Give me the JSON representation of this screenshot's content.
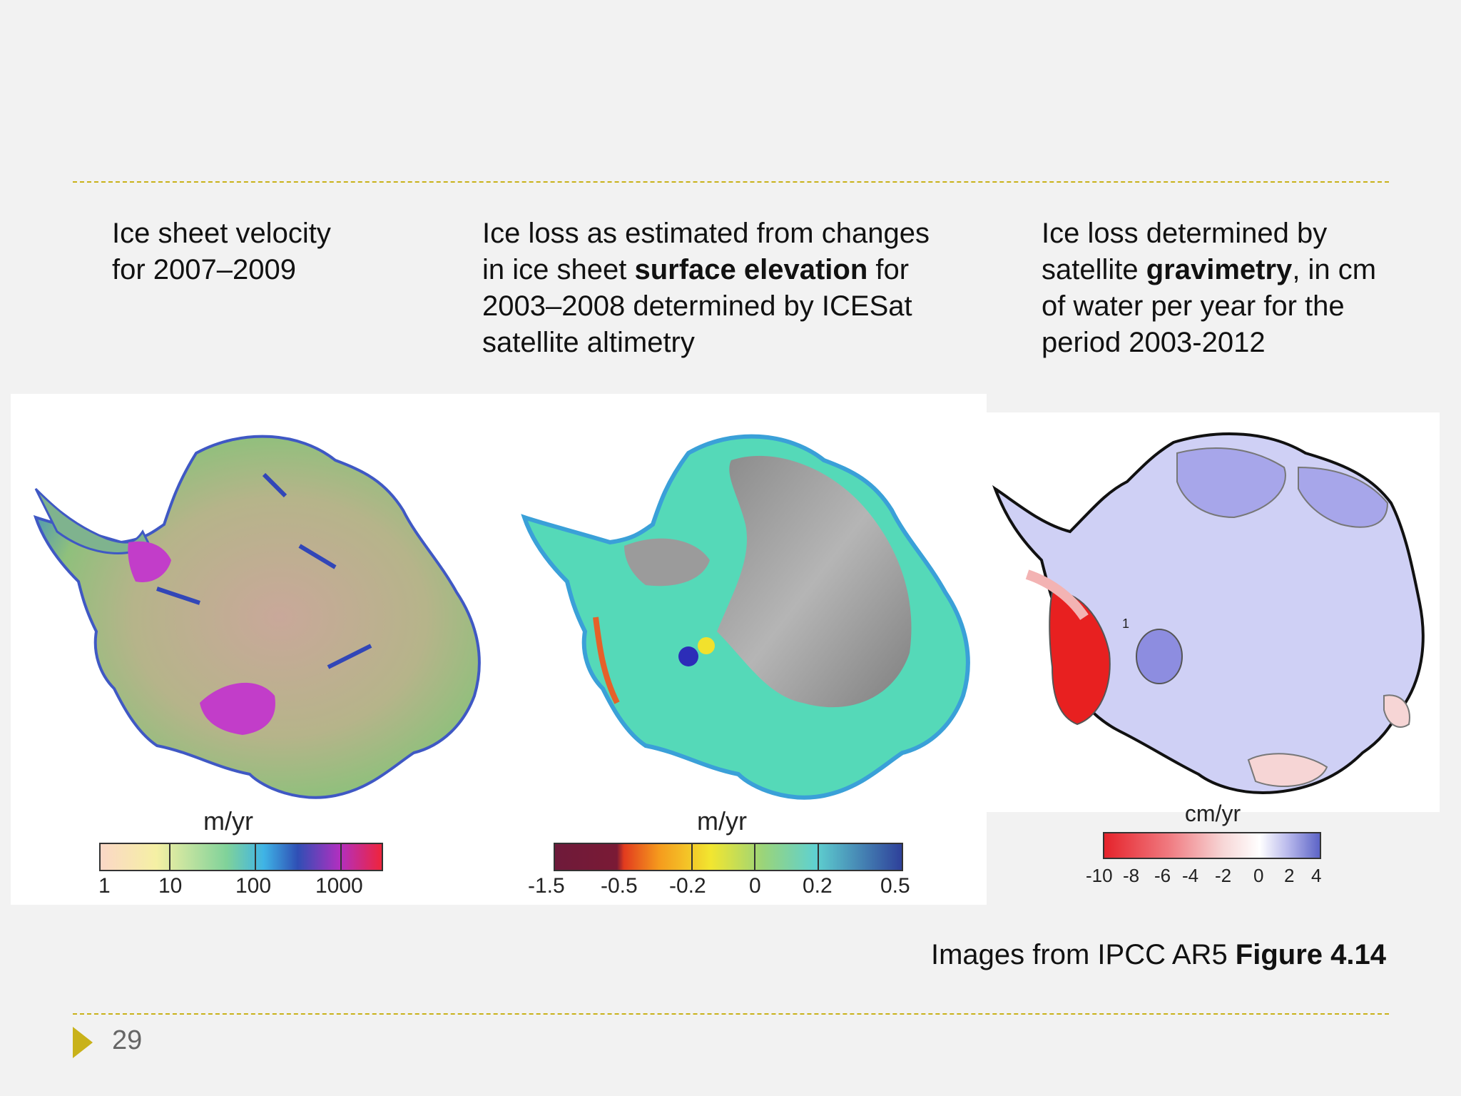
{
  "colors": {
    "rule": "#c9b21a",
    "arrow": "#c9b21a",
    "background": "#f2f2f2"
  },
  "captions": {
    "left": {
      "line1": "Ice sheet velocity",
      "line2": "for 2007–2009"
    },
    "middle": {
      "line1": "Ice loss as estimated from changes",
      "line2_pre": "in ice sheet ",
      "line2_bold": "surface elevation",
      "line2_post": " for",
      "line3": "2003–2008 determined by ICESat",
      "line4": "satellite altimetry"
    },
    "right": {
      "line1": "Ice loss determined by",
      "line2_pre": "satellite ",
      "line2_bold": "gravimetry",
      "line2_post": ", in cm",
      "line3": "of water per year for the",
      "line4": "period 2003-2012"
    }
  },
  "panels": {
    "velocity": {
      "unit": "m/yr",
      "ticks": [
        "1",
        "10",
        "100",
        "1000"
      ]
    },
    "elevation": {
      "unit": "m/yr",
      "ticks": [
        "-1.5",
        "-0.5",
        "-0.2",
        "0",
        "0.2",
        "0.5"
      ]
    },
    "gravimetry": {
      "unit": "cm/yr",
      "ticks": [
        "-10",
        "-8",
        "-6",
        "-4",
        "-2",
        "0",
        "2",
        "4"
      ],
      "contour_label": "1"
    }
  },
  "credit": {
    "prefix": "Images from IPCC AR5 ",
    "bold": "Figure 4.14"
  },
  "page_number": "29"
}
